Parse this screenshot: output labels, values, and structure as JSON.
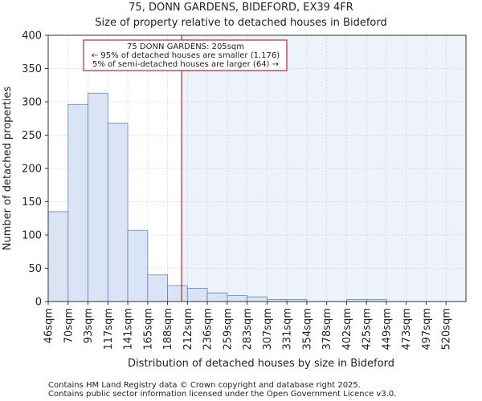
{
  "chart_data": {
    "type": "bar",
    "title": "75, DONN GARDENS, BIDEFORD, EX39 4FR",
    "subtitle": "Size of property relative to detached houses in Bideford",
    "xlabel": "Distribution of detached houses by size in Bideford",
    "ylabel": "Number of detached properties",
    "categories": [
      "46sqm",
      "70sqm",
      "93sqm",
      "117sqm",
      "141sqm",
      "165sqm",
      "188sqm",
      "212sqm",
      "236sqm",
      "259sqm",
      "283sqm",
      "307sqm",
      "331sqm",
      "354sqm",
      "378sqm",
      "402sqm",
      "425sqm",
      "449sqm",
      "473sqm",
      "497sqm",
      "520sqm"
    ],
    "values": [
      135,
      296,
      313,
      268,
      107,
      40,
      24,
      20,
      13,
      9,
      7,
      3,
      3,
      0,
      0,
      3,
      3,
      0,
      0,
      0,
      0
    ],
    "ylim": [
      0,
      400
    ],
    "yticks": [
      0,
      50,
      100,
      150,
      200,
      250,
      300,
      350,
      400
    ],
    "grid": true,
    "marker_value_sqm": 205,
    "annotation": {
      "line1": "75 DONN GARDENS: 205sqm",
      "line2": "← 95% of detached houses are smaller (1,176)",
      "line3": "5% of semi-detached houses are larger (64) →"
    },
    "colors": {
      "bar_fill": "#dae4f4",
      "bar_edge": "#5b87c5",
      "marker": "#aa0000",
      "shade": "#eef2fa",
      "grid": "#cfd7e6"
    }
  },
  "footer": {
    "line1": "Contains HM Land Registry data © Crown copyright and database right 2025.",
    "line2": "Contains public sector information licensed under the Open Government Licence v3.0."
  }
}
